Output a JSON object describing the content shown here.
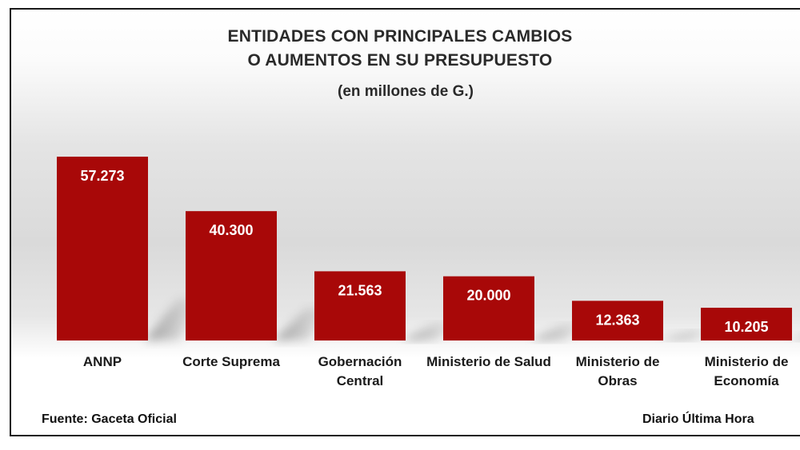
{
  "chart_data": {
    "type": "bar",
    "title_lines": [
      "ENTIDADES CON PRINCIPALES CAMBIOS",
      "O AUMENTOS EN SU PRESUPUESTO"
    ],
    "subtitle": "(en millones de G.)",
    "categories": [
      [
        "ANNP"
      ],
      [
        "Corte Suprema"
      ],
      [
        "Gobernación",
        "Central"
      ],
      [
        "Ministerio de Salud"
      ],
      [
        "Ministerio de",
        "Obras"
      ],
      [
        "Ministerio de",
        "Economía"
      ]
    ],
    "values": [
      57273,
      40300,
      21563,
      20000,
      12363,
      10205
    ],
    "value_labels": [
      "57.273",
      "40.300",
      "21.563",
      "20.000",
      "12.363",
      "10.205"
    ],
    "bar_color": "#a80808",
    "ylim": [
      0,
      57273
    ],
    "grid": false,
    "legend": "none"
  },
  "footer": {
    "source": "Fuente: Gaceta Oficial",
    "brand": "Diario Última Hora"
  }
}
